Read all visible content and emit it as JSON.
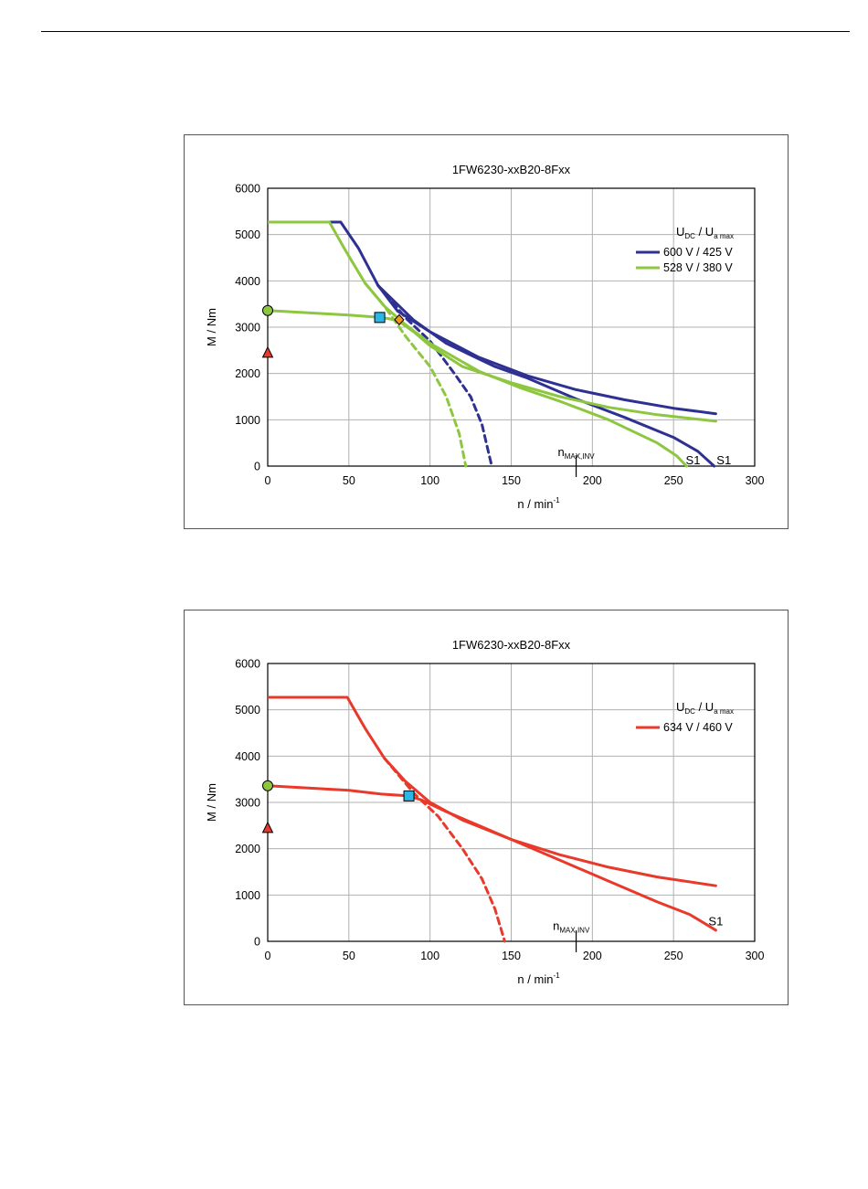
{
  "chart_data": [
    {
      "type": "line",
      "title": "1FW6230-xxB20-8Fxx",
      "xlabel": "n / min",
      "xlabel_sup": "-1",
      "ylabel": "M / Nm",
      "xlim": [
        0,
        300
      ],
      "ylim": [
        0,
        6000
      ],
      "xticks": [
        0,
        50,
        100,
        150,
        200,
        250,
        300
      ],
      "yticks": [
        0,
        1000,
        2000,
        3000,
        4000,
        5000,
        6000
      ],
      "grid": true,
      "legend_position": "top-right",
      "legend_header": {
        "main1": "U",
        "sub1": "DC",
        "sep": "/",
        "main2": "U",
        "sub2": "a max"
      },
      "series": [
        {
          "name": "600 V / 425 V",
          "color": "#2e3192",
          "lines": [
            {
              "style": "solid",
              "points": [
                [
                  0,
                  5270
                ],
                [
                  45,
                  5270
                ],
                [
                  56,
                  4700
                ],
                [
                  68,
                  3900
                ],
                [
                  80,
                  3350
                ],
                [
                  100,
                  2900
                ],
                [
                  130,
                  2350
                ],
                [
                  160,
                  1950
                ],
                [
                  190,
                  1650
                ],
                [
                  220,
                  1430
                ],
                [
                  250,
                  1250
                ],
                [
                  276,
                  1130
                ]
              ]
            },
            {
              "style": "solid",
              "points": [
                [
                  68,
                  3900
                ],
                [
                  90,
                  3150
                ],
                [
                  110,
                  2650
                ],
                [
                  140,
                  2150
                ],
                [
                  160,
                  1900
                ],
                [
                  190,
                  1450
                ],
                [
                  220,
                  1050
                ],
                [
                  250,
                  620
                ],
                [
                  265,
                  320
                ],
                [
                  275,
                  0
                ]
              ]
            },
            {
              "style": "dashed",
              "points": [
                [
                  68,
                  3900
                ],
                [
                  85,
                  3200
                ],
                [
                  100,
                  2700
                ],
                [
                  115,
                  2000
                ],
                [
                  125,
                  1500
                ],
                [
                  132,
                  900
                ],
                [
                  138,
                  0
                ]
              ]
            }
          ]
        },
        {
          "name": "528 V / 380 V",
          "color": "#8dc63f",
          "lines": [
            {
              "style": "solid",
              "points": [
                [
                  0,
                  3360
                ],
                [
                  50,
                  3260
                ],
                [
                  70,
                  3210
                ],
                [
                  80,
                  3150
                ],
                [
                  90,
                  2900
                ],
                [
                  100,
                  2600
                ],
                [
                  120,
                  2150
                ],
                [
                  150,
                  1800
                ],
                [
                  180,
                  1500
                ],
                [
                  210,
                  1270
                ],
                [
                  240,
                  1110
                ],
                [
                  276,
                  970
                ]
              ]
            },
            {
              "style": "solid",
              "points": [
                [
                  0,
                  5270
                ],
                [
                  38,
                  5270
                ],
                [
                  48,
                  4650
                ],
                [
                  60,
                  3950
                ],
                [
                  72,
                  3450
                ],
                [
                  85,
                  3050
                ],
                [
                  100,
                  2650
                ],
                [
                  130,
                  2050
                ],
                [
                  155,
                  1700
                ],
                [
                  180,
                  1400
                ],
                [
                  210,
                  1000
                ],
                [
                  240,
                  500
                ],
                [
                  252,
                  220
                ],
                [
                  258,
                  0
                ]
              ]
            },
            {
              "style": "dashed",
              "points": [
                [
                  60,
                  3950
                ],
                [
                  72,
                  3450
                ],
                [
                  85,
                  2800
                ],
                [
                  100,
                  2150
                ],
                [
                  110,
                  1500
                ],
                [
                  118,
                  700
                ],
                [
                  122,
                  0
                ]
              ]
            }
          ]
        }
      ],
      "markers": [
        {
          "shape": "circle",
          "x": 0,
          "y": 3360,
          "color": "#8dc63f"
        },
        {
          "shape": "triangle",
          "x": 0,
          "y": 2450,
          "color": "#e8392a"
        },
        {
          "shape": "square",
          "x": 69,
          "y": 3210,
          "color": "#29b6e8"
        },
        {
          "shape": "diamond",
          "x": 81,
          "y": 3160,
          "color": "#f7941d"
        }
      ],
      "annotations": [
        {
          "text": "n",
          "sub": "MAX,INV",
          "x": 190,
          "y": 300
        },
        {
          "text": "S1",
          "x": 262,
          "y": 120
        },
        {
          "text": "S1",
          "x": 281,
          "y": 120
        }
      ],
      "vline_marker_x": 190
    },
    {
      "type": "line",
      "title": "1FW6230-xxB20-8Fxx",
      "xlabel": "n / min",
      "xlabel_sup": "-1",
      "ylabel": "M / Nm",
      "xlim": [
        0,
        300
      ],
      "ylim": [
        0,
        6000
      ],
      "xticks": [
        0,
        50,
        100,
        150,
        200,
        250,
        300
      ],
      "yticks": [
        0,
        1000,
        2000,
        3000,
        4000,
        5000,
        6000
      ],
      "grid": true,
      "legend_position": "top-right",
      "legend_header": {
        "main1": "U",
        "sub1": "DC",
        "sep": "/",
        "main2": "U",
        "sub2": "a max"
      },
      "series": [
        {
          "name": "634 V / 460 V",
          "color": "#e8392a",
          "lines": [
            {
              "style": "solid",
              "points": [
                [
                  0,
                  5270
                ],
                [
                  49,
                  5270
                ],
                [
                  60,
                  4600
                ],
                [
                  72,
                  3950
                ],
                [
                  85,
                  3450
                ],
                [
                  100,
                  3000
                ],
                [
                  120,
                  2620
                ],
                [
                  150,
                  2200
                ],
                [
                  180,
                  1870
                ],
                [
                  210,
                  1600
                ],
                [
                  240,
                  1390
                ],
                [
                  276,
                  1200
                ]
              ]
            },
            {
              "style": "solid",
              "points": [
                [
                  0,
                  3360
                ],
                [
                  50,
                  3260
                ],
                [
                  70,
                  3180
                ],
                [
                  87,
                  3140
                ],
                [
                  95,
                  3050
                ],
                [
                  110,
                  2800
                ],
                [
                  130,
                  2500
                ],
                [
                  150,
                  2200
                ],
                [
                  180,
                  1750
                ],
                [
                  210,
                  1300
                ],
                [
                  240,
                  850
                ],
                [
                  260,
                  580
                ],
                [
                  276,
                  240
                ]
              ]
            },
            {
              "style": "dashed",
              "points": [
                [
                  72,
                  3950
                ],
                [
                  90,
                  3200
                ],
                [
                  105,
                  2700
                ],
                [
                  120,
                  2000
                ],
                [
                  132,
                  1350
                ],
                [
                  140,
                  700
                ],
                [
                  146,
                  0
                ]
              ]
            }
          ]
        }
      ],
      "markers": [
        {
          "shape": "circle",
          "x": 0,
          "y": 3360,
          "color": "#8dc63f"
        },
        {
          "shape": "triangle",
          "x": 0,
          "y": 2450,
          "color": "#e8392a"
        },
        {
          "shape": "square",
          "x": 87,
          "y": 3140,
          "color": "#29b6e8"
        }
      ],
      "annotations": [
        {
          "text": "n",
          "sub": "MAX,INV",
          "x": 187,
          "y": 330
        },
        {
          "text": "S1",
          "x": 276,
          "y": 420
        }
      ],
      "vline_marker_x": 190
    }
  ]
}
